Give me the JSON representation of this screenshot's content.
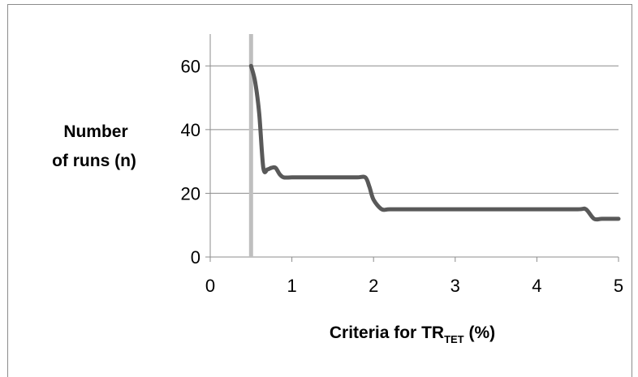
{
  "chart_data": {
    "type": "line",
    "xlabel": "Criteria for TR",
    "xlabel_subscript": "TET",
    "xlabel_suffix": " (%)",
    "ylabel": [
      "Number",
      "of runs (n)"
    ],
    "xlim": [
      0,
      5
    ],
    "ylim": [
      0,
      70
    ],
    "x_ticks": [
      0,
      1,
      2,
      3,
      4,
      5
    ],
    "y_ticks": [
      0,
      20,
      40,
      60
    ],
    "grid": "horizontal",
    "vertical_marker_x": 0.5,
    "series": [
      {
        "color": "#595959",
        "x": [
          0.5,
          0.55,
          0.6,
          0.65,
          0.7,
          0.75,
          0.8,
          0.85,
          0.9,
          1.0,
          1.2,
          1.4,
          1.6,
          1.8,
          1.9,
          1.95,
          2.0,
          2.1,
          2.2,
          2.5,
          3.0,
          3.5,
          4.0,
          4.5,
          4.6,
          4.7,
          4.8,
          5.0
        ],
        "values": [
          60,
          55,
          45,
          28,
          27.5,
          28,
          28,
          26,
          25,
          25,
          25,
          25,
          25,
          25,
          25,
          22,
          18,
          15,
          15,
          15,
          15,
          15,
          15,
          15,
          15,
          12,
          12,
          12
        ]
      }
    ],
    "colors": {
      "line": "#595959",
      "marker": "#bfbfbf",
      "grid": "#8c8c8c",
      "axis": "#8c8c8c",
      "text": "#000000"
    }
  }
}
